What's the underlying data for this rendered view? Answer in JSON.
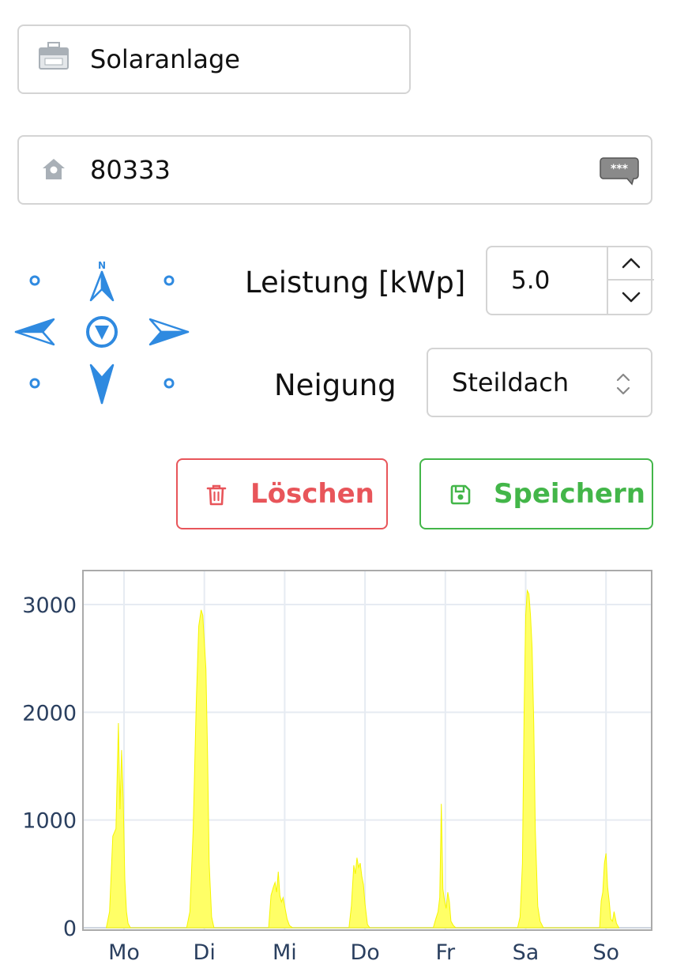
{
  "form": {
    "name_value": "Solaranlage",
    "zip_value": "80333",
    "compass_label": "N",
    "power_label": "Leistung [kWp]",
    "power_value": "5.0",
    "tilt_label": "Neigung",
    "tilt_value": "Steildach",
    "delete_label": "Löschen",
    "save_label": "Speichern"
  },
  "colors": {
    "accent": "#2f8ae0",
    "delete": "#e8555a",
    "save": "#43b649",
    "fill": "#ffff66"
  },
  "chart_data": {
    "type": "area",
    "xlabel": "",
    "ylabel": "",
    "ylim": [
      0,
      3300
    ],
    "yticks": [
      0,
      1000,
      2000,
      3000
    ],
    "categories": [
      "Mo",
      "Di",
      "Mi",
      "Do",
      "Fr",
      "Sa",
      "So"
    ],
    "series": [
      {
        "x": [
          -0.22,
          -0.18,
          -0.14,
          -0.1,
          -0.07,
          -0.05,
          -0.03,
          -0.01,
          0.01,
          0.03,
          0.05,
          0.08,
          0.11,
          0.15,
          0.78,
          0.82,
          0.86,
          0.9,
          0.93,
          0.96,
          0.98,
          1.0,
          1.02,
          1.04,
          1.06,
          1.09,
          1.12,
          1.16,
          1.8,
          1.83,
          1.86,
          1.88,
          1.9,
          1.92,
          1.94,
          1.96,
          1.98,
          2.0,
          2.03,
          2.06,
          2.1,
          2.8,
          2.83,
          2.86,
          2.88,
          2.9,
          2.92,
          2.94,
          2.96,
          2.98,
          3.0,
          3.03,
          3.06,
          3.1,
          3.85,
          3.88,
          3.91,
          3.93,
          3.95,
          3.97,
          3.99,
          4.01,
          4.03,
          4.05,
          4.07,
          4.1,
          4.13,
          4.9,
          4.93,
          4.96,
          4.98,
          5.0,
          5.02,
          5.04,
          5.06,
          5.08,
          5.1,
          5.12,
          5.15,
          5.18,
          5.22,
          5.92,
          5.94,
          5.96,
          5.98,
          6.0,
          6.02,
          6.04,
          6.06,
          6.08,
          6.1,
          6.13,
          6.16
        ],
        "y": [
          0,
          150,
          850,
          920,
          1900,
          1100,
          1650,
          1200,
          450,
          150,
          40,
          0,
          0,
          0,
          0,
          150,
          900,
          2100,
          2800,
          2950,
          2900,
          2650,
          2400,
          1600,
          600,
          100,
          0,
          0,
          0,
          300,
          380,
          420,
          330,
          520,
          300,
          240,
          280,
          200,
          80,
          20,
          0,
          0,
          200,
          580,
          500,
          650,
          560,
          600,
          480,
          400,
          220,
          30,
          0,
          0,
          0,
          80,
          150,
          280,
          1150,
          360,
          250,
          180,
          330,
          240,
          60,
          20,
          0,
          0,
          100,
          600,
          2000,
          2900,
          3130,
          3100,
          2900,
          2600,
          1900,
          900,
          200,
          60,
          0,
          0,
          250,
          330,
          600,
          690,
          380,
          240,
          80,
          60,
          150,
          40,
          0
        ]
      }
    ]
  }
}
